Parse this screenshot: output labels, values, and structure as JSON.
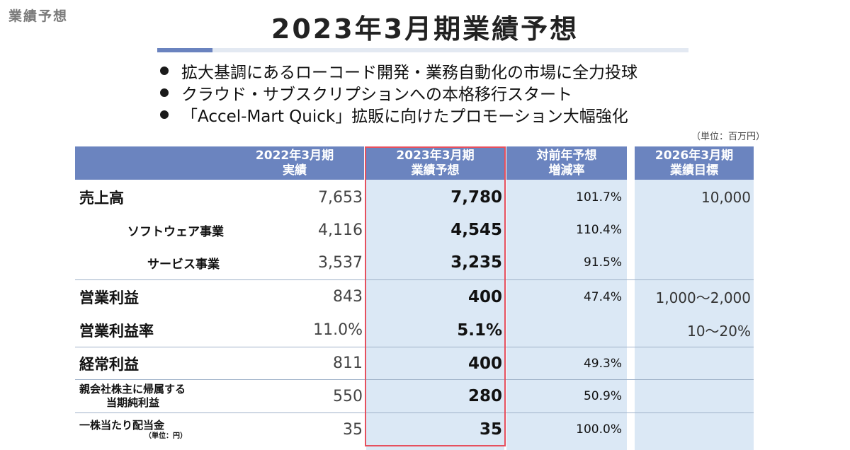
{
  "corner_label": "業績予想",
  "title": "2023年3月期業績予想",
  "bullets": [
    "拡大基調にあるローコード開発・業務自動化の市場に全力投球",
    "クラウド・サブスクリプションへの本格移行スタート",
    "「Accel-Mart Quick」拡販に向けたプロモーション大幅強化"
  ],
  "unit_note": "（単位：百万円）",
  "columns": {
    "fy2022": {
      "line1": "2022年3月期",
      "line2": "実績"
    },
    "fy2023": {
      "line1": "2023年3月期",
      "line2": "業績予想"
    },
    "yoy": {
      "line1": "対前年予想",
      "line2": "増減率"
    },
    "fy2026": {
      "line1": "2026年3月期",
      "line2": "業績目標"
    }
  },
  "rows": [
    {
      "label": "売上高",
      "fy2022": "7,653",
      "fy2023": "7,780",
      "yoy": "101.7%",
      "fy2026": "10,000"
    },
    {
      "label": "ソフトウェア事業",
      "fy2022": "4,116",
      "fy2023": "4,545",
      "yoy": "110.4%",
      "fy2026": ""
    },
    {
      "label": "サービス事業",
      "fy2022": "3,537",
      "fy2023": "3,235",
      "yoy": "91.5%",
      "fy2026": ""
    },
    {
      "label": "営業利益",
      "fy2022": "843",
      "fy2023": "400",
      "yoy": "47.4%",
      "fy2026": "1,000～2,000"
    },
    {
      "label": "営業利益率",
      "fy2022": "11.0%",
      "fy2023": "5.1%",
      "yoy": "",
      "fy2026": "10～20%"
    },
    {
      "label": "経常利益",
      "fy2022": "811",
      "fy2023": "400",
      "yoy": "49.3%",
      "fy2026": ""
    },
    {
      "label_line1": "親会社株主に帰属する",
      "label_line2": "当期純利益",
      "fy2022": "550",
      "fy2023": "280",
      "yoy": "50.9%",
      "fy2026": ""
    },
    {
      "label_line1": "一株当たり配当金",
      "label_note": "（単位：円）",
      "fy2022": "35",
      "fy2023": "35",
      "yoy": "100.0%",
      "fy2026": ""
    }
  ],
  "colors": {
    "header_bg": "#6b84bf",
    "cell_bg": "#dbe8f5",
    "highlight": "#e6505e"
  }
}
